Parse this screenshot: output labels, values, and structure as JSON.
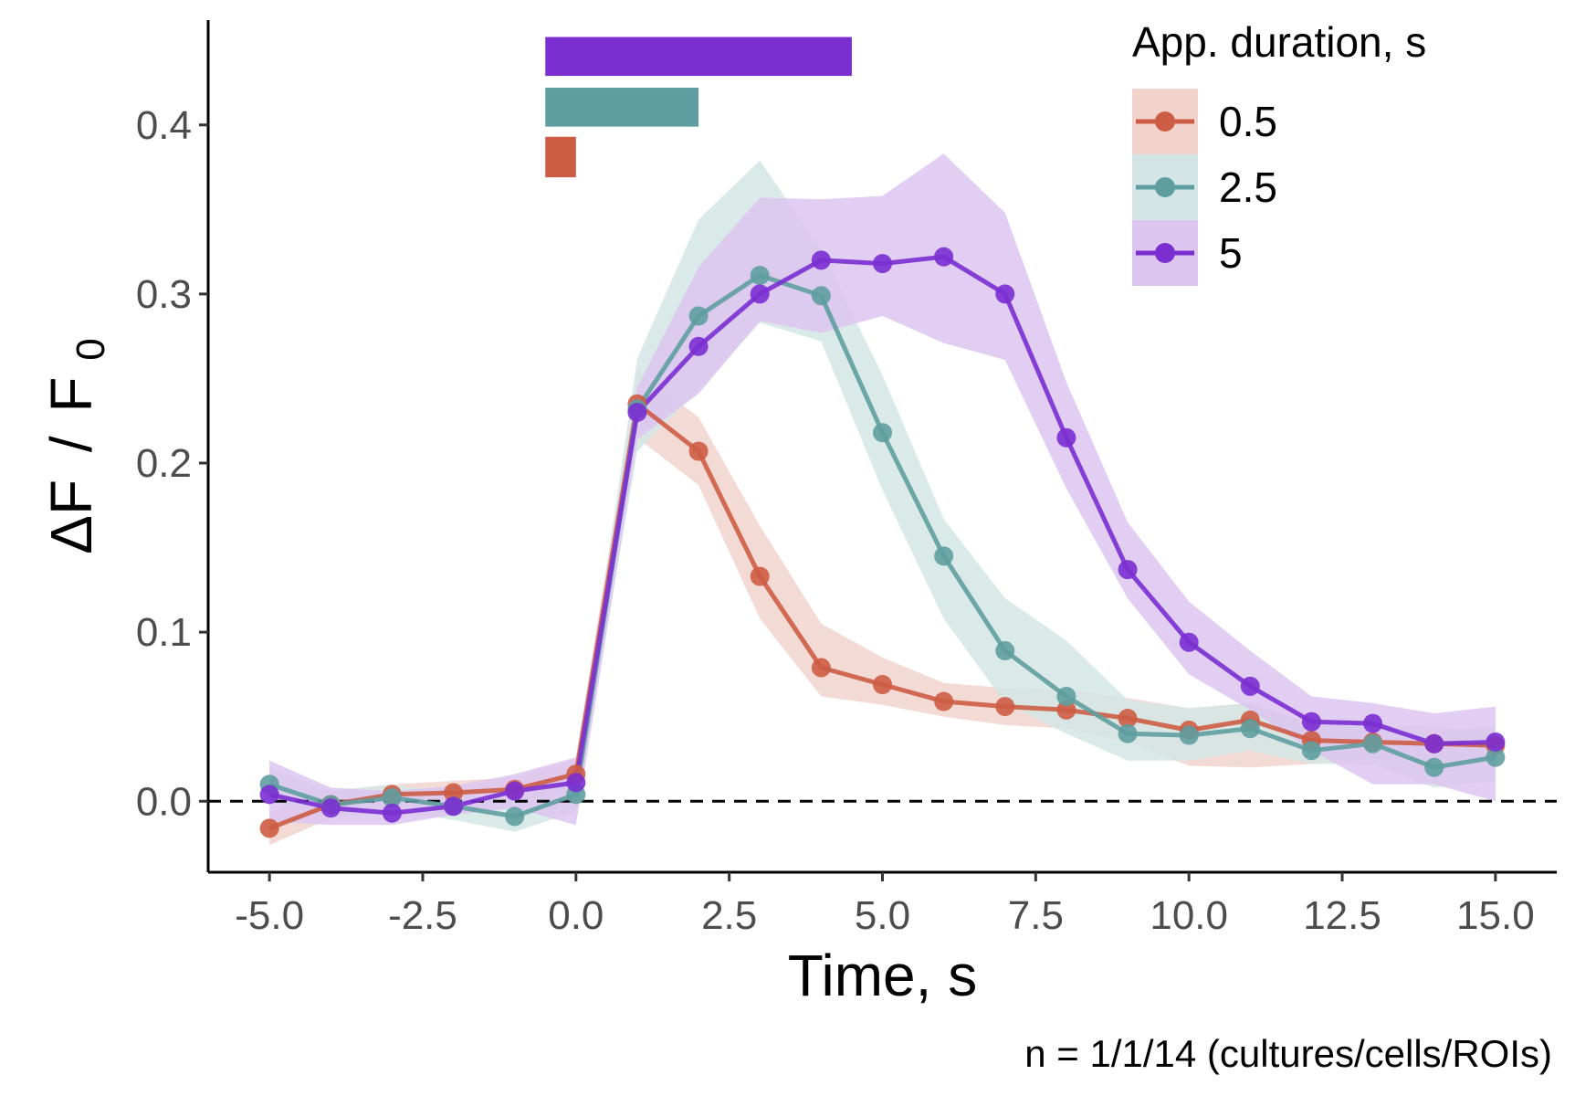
{
  "chart_data": {
    "type": "line",
    "title": "",
    "xlabel": "Time, s",
    "ylabel_main": "ΔF",
    "ylabel_slash": "/",
    "ylabel_denom": "F",
    "ylabel_sub": "0",
    "caption": "n = 1/1/14 (cultures/cells/ROIs)",
    "xlim": [
      -6.0,
      16.0
    ],
    "ylim": [
      -0.042,
      0.462
    ],
    "x_ticks": [
      -5.0,
      -2.5,
      0.0,
      2.5,
      5.0,
      7.5,
      10.0,
      12.5,
      15.0
    ],
    "x_tick_labels": [
      "-5.0",
      "-2.5",
      "0.0",
      "2.5",
      "5.0",
      "7.5",
      "10.0",
      "12.5",
      "15.0"
    ],
    "y_ticks": [
      0.0,
      0.1,
      0.2,
      0.3,
      0.4
    ],
    "y_tick_labels": [
      "0.0",
      "0.1",
      "0.2",
      "0.3",
      "0.4"
    ],
    "reference_line": {
      "y": 0.0,
      "style": "dashed"
    },
    "grid": false,
    "legend": {
      "title": "App. duration, s",
      "position": "top-right"
    },
    "x": [
      -5,
      -4,
      -3,
      -2,
      -1,
      0,
      1,
      2,
      3,
      4,
      5,
      6,
      7,
      8,
      9,
      10,
      11,
      12,
      13,
      14,
      15
    ],
    "application_bars": [
      {
        "series": "5",
        "x_start": -0.5,
        "x_end": 4.5,
        "y_low": 0.429,
        "y_high": 0.452
      },
      {
        "series": "2.5",
        "x_start": -0.5,
        "x_end": 2.0,
        "y_low": 0.399,
        "y_high": 0.422
      },
      {
        "series": "0.5",
        "x_start": -0.5,
        "x_end": 0.0,
        "y_low": 0.369,
        "y_high": 0.393
      }
    ],
    "series": [
      {
        "name": "0.5",
        "color": "#cd5c45",
        "band_color": "#f2d3cc",
        "values": [
          -0.016,
          -0.002,
          0.004,
          0.005,
          0.007,
          0.016,
          0.235,
          0.207,
          0.133,
          0.079,
          0.069,
          0.059,
          0.056,
          0.054,
          0.049,
          0.042,
          0.048,
          0.036,
          0.035,
          0.034,
          0.033
        ],
        "upper": [
          -0.006,
          0.006,
          0.01,
          0.012,
          0.014,
          0.025,
          0.255,
          0.227,
          0.163,
          0.105,
          0.085,
          0.07,
          0.067,
          0.066,
          0.061,
          0.055,
          0.058,
          0.046,
          0.045,
          0.044,
          0.042
        ],
        "lower": [
          -0.026,
          -0.01,
          -0.003,
          -0.002,
          0.0,
          0.007,
          0.215,
          0.187,
          0.108,
          0.062,
          0.057,
          0.05,
          0.045,
          0.043,
          0.035,
          0.021,
          0.02,
          0.022,
          0.025,
          0.024,
          0.024
        ]
      },
      {
        "name": "2.5",
        "color": "#5f9ea0",
        "band_color": "#d3e6e5",
        "values": [
          0.01,
          -0.002,
          0.002,
          -0.003,
          -0.009,
          0.004,
          0.232,
          0.287,
          0.311,
          0.299,
          0.218,
          0.145,
          0.089,
          0.062,
          0.04,
          0.039,
          0.043,
          0.03,
          0.034,
          0.02,
          0.026
        ],
        "upper": [
          0.02,
          0.006,
          0.01,
          0.005,
          0.0,
          0.014,
          0.262,
          0.344,
          0.379,
          0.326,
          0.252,
          0.167,
          0.12,
          0.095,
          0.06,
          0.055,
          0.058,
          0.045,
          0.046,
          0.04,
          0.045
        ],
        "lower": [
          0.0,
          -0.01,
          -0.006,
          -0.011,
          -0.018,
          -0.006,
          0.207,
          0.243,
          0.283,
          0.272,
          0.184,
          0.108,
          0.058,
          0.04,
          0.024,
          0.024,
          0.03,
          0.022,
          0.022,
          0.008,
          0.012
        ]
      },
      {
        "name": "5",
        "color": "#7b2fd1",
        "band_color": "#dcc6f0",
        "values": [
          0.004,
          -0.004,
          -0.007,
          -0.003,
          0.006,
          0.011,
          0.23,
          0.269,
          0.3,
          0.32,
          0.318,
          0.322,
          0.3,
          0.215,
          0.137,
          0.094,
          0.068,
          0.047,
          0.046,
          0.034,
          0.035
        ],
        "upper": [
          0.024,
          0.008,
          0.006,
          0.009,
          0.016,
          0.026,
          0.245,
          0.316,
          0.357,
          0.356,
          0.358,
          0.383,
          0.348,
          0.248,
          0.165,
          0.118,
          0.089,
          0.062,
          0.058,
          0.052,
          0.056
        ],
        "lower": [
          -0.012,
          -0.014,
          -0.014,
          -0.008,
          -0.004,
          -0.014,
          0.214,
          0.241,
          0.284,
          0.277,
          0.287,
          0.271,
          0.261,
          0.185,
          0.12,
          0.075,
          0.054,
          0.03,
          0.01,
          0.01,
          0.0
        ]
      }
    ]
  }
}
